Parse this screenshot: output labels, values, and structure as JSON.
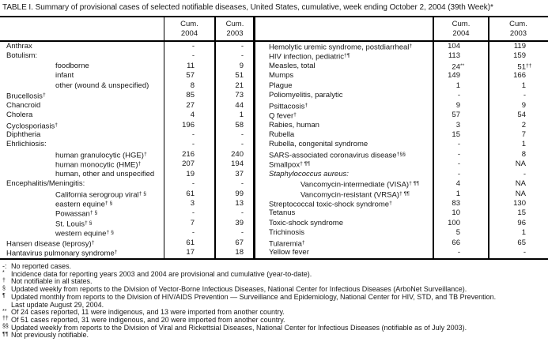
{
  "title": "TABLE I. Summary of provisional cases of selected notifiable diseases, United States, cumulative, week ending October 2, 2004 (39th Week)*",
  "columns": {
    "cum": "Cum.",
    "y2004": "2004",
    "y2003": "2003"
  },
  "left_rows": [
    {
      "label": "Anthrax",
      "v04": "-",
      "v03": "-"
    },
    {
      "label": "Botulism:",
      "v04": "-",
      "v03": "-"
    },
    {
      "label": "foodborne",
      "indent": 1,
      "v04": "11",
      "v03": "9"
    },
    {
      "label": "infant",
      "indent": 1,
      "v04": "57",
      "v03": "51"
    },
    {
      "label": "other (wound & unspecified)",
      "indent": 1,
      "v04": "8",
      "v03": "21"
    },
    {
      "label": "Brucellosis",
      "sup": "†",
      "v04": "85",
      "v03": "73"
    },
    {
      "label": "Chancroid",
      "v04": "27",
      "v03": "44"
    },
    {
      "label": "Cholera",
      "v04": "4",
      "v03": "1"
    },
    {
      "label": "Cyclosporiasis",
      "sup": "†",
      "v04": "196",
      "v03": "58"
    },
    {
      "label": "Diphtheria",
      "v04": "-",
      "v03": "-"
    },
    {
      "label": "Ehrlichiosis:",
      "v04": "-",
      "v03": "-"
    },
    {
      "label": "human granulocytic (HGE)",
      "sup": "†",
      "indent": 1,
      "v04": "216",
      "v03": "240"
    },
    {
      "label": "human monocytic (HME)",
      "sup": "†",
      "indent": 1,
      "v04": "207",
      "v03": "194"
    },
    {
      "label": "human, other and unspecified",
      "indent": 1,
      "v04": "19",
      "v03": "37"
    },
    {
      "label": "Encephalitis/Meningitis:",
      "v04": "-",
      "v03": "-"
    },
    {
      "label": "California serogroup viral",
      "sup": "† §",
      "indent": 1,
      "v04": "61",
      "v03": "99"
    },
    {
      "label": "eastern equine",
      "sup": "† §",
      "indent": 1,
      "v04": "3",
      "v03": "13"
    },
    {
      "label": "Powassan",
      "sup": "† §",
      "indent": 1,
      "v04": "-",
      "v03": "-"
    },
    {
      "label": "St. Louis",
      "sup": "† §",
      "indent": 1,
      "v04": "7",
      "v03": "39"
    },
    {
      "label": "western equine",
      "sup": "† §",
      "indent": 1,
      "v04": "-",
      "v03": "-"
    },
    {
      "label": "Hansen disease (leprosy)",
      "sup": "†",
      "v04": "61",
      "v03": "67"
    },
    {
      "label": "Hantavirus pulmonary syndrome",
      "sup": "†",
      "v04": "17",
      "v03": "18"
    }
  ],
  "right_rows": [
    {
      "label": "Hemolytic uremic syndrome, postdiarrheal",
      "sup": "†",
      "v04": "104",
      "v03": "119"
    },
    {
      "label": "HIV infection, pediatric",
      "sup": "†¶",
      "v04": "113",
      "v03": "159"
    },
    {
      "label": "Measles, total",
      "v04": "24",
      "v04sup": "**",
      "v03": "51",
      "v03sup": "††"
    },
    {
      "label": "Mumps",
      "v04": "149",
      "v03": "166"
    },
    {
      "label": "Plague",
      "v04": "1",
      "v03": "1"
    },
    {
      "label": "Poliomyelitis, paralytic",
      "v04": "-",
      "v03": "-"
    },
    {
      "label": "Psittacosis",
      "sup": "†",
      "v04": "9",
      "v03": "9"
    },
    {
      "label": "Q fever",
      "sup": "†",
      "v04": "57",
      "v03": "54"
    },
    {
      "label": "Rabies, human",
      "v04": "3",
      "v03": "2"
    },
    {
      "label": "Rubella",
      "v04": "15",
      "v03": "7"
    },
    {
      "label": "Rubella, congenital syndrome",
      "v04": "-",
      "v03": "1"
    },
    {
      "label": "SARS-associated coronavirus disease",
      "sup": "†§§",
      "v04": "-",
      "v03": "8"
    },
    {
      "label": "Smallpox",
      "sup": "† ¶¶",
      "v04": "-",
      "v03": "NA"
    },
    {
      "label": "Staphylococcus aureus:",
      "italic": true,
      "v04": "-",
      "v03": "-"
    },
    {
      "label": "Vancomycin-intermediate (VISA)",
      "sup": "† ¶¶",
      "indent": 1,
      "v04": "4",
      "v03": "NA"
    },
    {
      "label": "Vancomycin-resistant (VRSA)",
      "sup": "† ¶¶",
      "indent": 1,
      "v04": "1",
      "v03": "NA"
    },
    {
      "label": "Streptococcal toxic-shock syndrome",
      "sup": "†",
      "v04": "83",
      "v03": "130"
    },
    {
      "label": "Tetanus",
      "v04": "10",
      "v03": "15"
    },
    {
      "label": "Toxic-shock syndrome",
      "v04": "100",
      "v03": "96"
    },
    {
      "label": "Trichinosis",
      "v04": "5",
      "v03": "1"
    },
    {
      "label": "Tularemia",
      "sup": "†",
      "v04": "66",
      "v03": "65"
    },
    {
      "label": "Yellow fever",
      "v04": "-",
      "v03": "-"
    }
  ],
  "footnotes": [
    {
      "sym": "-:",
      "raised": false,
      "text": "No reported cases."
    },
    {
      "sym": "*",
      "raised": true,
      "text": "Incidence data for reporting years 2003 and 2004 are provisional and cumulative (year-to-date)."
    },
    {
      "sym": "†",
      "raised": true,
      "text": "Not notifiable in all states."
    },
    {
      "sym": "§",
      "raised": true,
      "text": "Updated weekly from reports to the Division of Vector-Borne Infectious Diseases, National Center for Infectious Diseases (ArboNet Surveillance)."
    },
    {
      "sym": "¶",
      "raised": true,
      "text": "Updated monthly from reports to the Division of HIV/AIDS Prevention — Surveillance and Epidemiology, National Center for HIV, STD, and TB Prevention."
    },
    {
      "sym": "",
      "raised": true,
      "text": "Last update August 29, 2004."
    },
    {
      "sym": "**",
      "raised": true,
      "text": "Of 24 cases reported, 11 were indigenous, and 13 were imported from another country."
    },
    {
      "sym": "††",
      "raised": true,
      "text": "Of 51 cases reported, 31 were indigenous, and 20 were imported from another country."
    },
    {
      "sym": "§§",
      "raised": true,
      "text": "Updated weekly from reports to the Division of Viral and Rickettsial Diseases, National Center for Infectious Diseases (notifiable as of July 2003)."
    },
    {
      "sym": "¶¶",
      "raised": true,
      "text": "Not previously notifiable."
    }
  ]
}
